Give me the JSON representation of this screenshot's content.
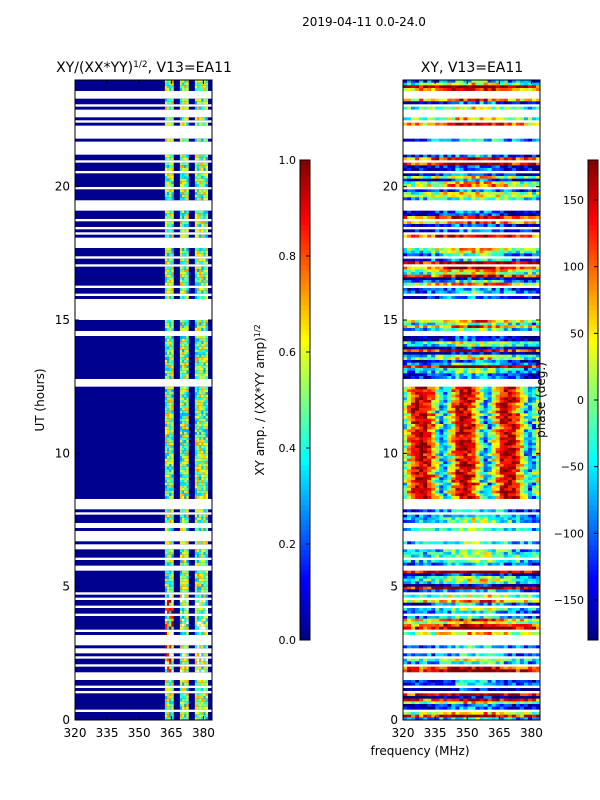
{
  "figure": {
    "suptitle": "2019-04-11 0.0-24.0",
    "xlabel_shared": "frequency (MHz)"
  },
  "chart_data": [
    {
      "type": "heatmap",
      "title": "XY/(XX*YY)^1/2, V13=EA11",
      "title_main": "XY/(XX*YY)",
      "title_sup": "1/2",
      "title_tail": ", V13=EA11",
      "xlabel": "frequency (MHz)",
      "ylabel": "UT (hours)",
      "xlim": [
        320,
        384
      ],
      "ylim": [
        0,
        24
      ],
      "xticks": [
        "320",
        "335",
        "350",
        "365",
        "380"
      ],
      "xtick_values": [
        320,
        335,
        350,
        365,
        380
      ],
      "yticks": [
        "0",
        "5",
        "10",
        "15",
        "20"
      ],
      "ytick_values": [
        0,
        5,
        10,
        15,
        20
      ],
      "colorbar": {
        "label": "XY amp. / (XX*YY amp)^1/2",
        "label_main": "XY amp. / (XX*YY amp)",
        "label_sup": "1/2",
        "range": [
          0.0,
          1.0
        ],
        "ticks": [
          "0.0",
          "0.2",
          "0.4",
          "0.6",
          "0.8",
          "1.0"
        ],
        "tick_values": [
          0.0,
          0.2,
          0.4,
          0.6,
          0.8,
          1.0
        ],
        "colormap": "jet"
      },
      "bands_mhz": [
        [
          362,
          366
        ],
        [
          369,
          373
        ],
        [
          376,
          382
        ]
      ],
      "good_data_hours": [
        [
          8.3,
          12.5
        ],
        [
          12.9,
          14.4
        ],
        [
          14.6,
          15.0
        ],
        [
          0.0,
          0.3
        ],
        [
          23.9,
          24.0
        ]
      ],
      "blank_gaps_hours": [
        [
          22.6,
          22.8
        ],
        [
          15.0,
          15.8
        ],
        [
          12.5,
          12.8
        ],
        [
          21.4,
          21.5
        ],
        [
          8.2,
          8.3
        ]
      ]
    },
    {
      "type": "heatmap",
      "title": "XY, V13=EA11",
      "xlim": [
        320,
        384
      ],
      "ylim": [
        0,
        24
      ],
      "xticks": [
        "320",
        "335",
        "350",
        "365",
        "380"
      ],
      "xtick_values": [
        320,
        335,
        350,
        365,
        380
      ],
      "yticks": [
        "0",
        "5",
        "10",
        "15",
        "20"
      ],
      "ytick_values": [
        0,
        5,
        10,
        15,
        20
      ],
      "colorbar": {
        "label": "phase (deg.)",
        "range": [
          -180,
          180
        ],
        "ticks": [
          "−150",
          "−100",
          "−50",
          "0",
          "50",
          "100",
          "150"
        ],
        "tick_values": [
          -150,
          -100,
          -50,
          0,
          50,
          100,
          150
        ],
        "colormap": "jet"
      }
    }
  ]
}
